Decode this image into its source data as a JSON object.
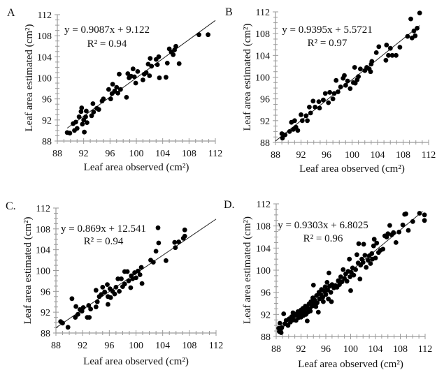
{
  "chart_data": [
    {
      "panel_label": "A",
      "type": "scatter",
      "xlabel": "Leaf area observed  (cm²)",
      "ylabel": "Leaf area estimated  (cm²)",
      "xlim": [
        88,
        112
      ],
      "ylim": [
        88,
        112
      ],
      "xticks": [
        "88",
        "92",
        "96",
        "100",
        "104",
        "108",
        "112"
      ],
      "yticks": [
        "88",
        "92",
        "96",
        "100",
        "104",
        "108",
        "112"
      ],
      "grid": false,
      "equation": "y = 0.9087x + 9.122",
      "r_squared": "R² = 0.94",
      "trendline": {
        "slope": 0.9087,
        "intercept": 9.122,
        "x_range": [
          89.5,
          112
        ]
      },
      "points": [
        [
          89.5,
          89.6
        ],
        [
          89.9,
          89.5
        ],
        [
          90.4,
          91.3
        ],
        [
          90.6,
          90.0
        ],
        [
          90.8,
          91.6
        ],
        [
          91.0,
          90.4
        ],
        [
          91.3,
          92.6
        ],
        [
          91.6,
          93.6
        ],
        [
          91.7,
          94.3
        ],
        [
          91.8,
          91.2
        ],
        [
          92.0,
          92.0
        ],
        [
          92.1,
          89.7
        ],
        [
          92.3,
          92.6
        ],
        [
          92.4,
          93.7
        ],
        [
          92.5,
          91.5
        ],
        [
          93.2,
          92.8
        ],
        [
          93.4,
          95.1
        ],
        [
          93.5,
          93.5
        ],
        [
          94.0,
          94.2
        ],
        [
          94.3,
          94.0
        ],
        [
          94.8,
          95.6
        ],
        [
          95.0,
          96.0
        ],
        [
          95.8,
          97.8
        ],
        [
          96.1,
          96.0
        ],
        [
          96.3,
          97.0
        ],
        [
          96.4,
          98.8
        ],
        [
          96.7,
          97.5
        ],
        [
          97.0,
          98.2
        ],
        [
          97.2,
          97.1
        ],
        [
          97.4,
          100.7
        ],
        [
          97.6,
          97.8
        ],
        [
          98.5,
          96.3
        ],
        [
          98.7,
          100.8
        ],
        [
          98.9,
          100.0
        ],
        [
          99.2,
          100.3
        ],
        [
          99.5,
          101.7
        ],
        [
          99.7,
          100.2
        ],
        [
          99.9,
          99.0
        ],
        [
          100.2,
          101.2
        ],
        [
          101.0,
          99.6
        ],
        [
          101.2,
          100.7
        ],
        [
          101.5,
          101.0
        ],
        [
          101.8,
          102.6
        ],
        [
          102.0,
          100.4
        ],
        [
          102.1,
          103.7
        ],
        [
          102.3,
          102.2
        ],
        [
          103.0,
          103.5
        ],
        [
          103.2,
          102.5
        ],
        [
          103.4,
          104.0
        ],
        [
          103.5,
          100.0
        ],
        [
          104.5,
          100.1
        ],
        [
          104.7,
          102.8
        ],
        [
          105.0,
          105.5
        ],
        [
          105.3,
          104.9
        ],
        [
          105.6,
          104.4
        ],
        [
          105.8,
          105.3
        ],
        [
          106.0,
          106.0
        ],
        [
          106.5,
          102.7
        ],
        [
          109.5,
          108.2
        ],
        [
          110.9,
          108.2
        ]
      ]
    },
    {
      "panel_label": "B",
      "type": "scatter",
      "xlabel": "Leaf area observed  (cm²)",
      "ylabel": "Leaf area estimated  (cm²)",
      "xlim": [
        88,
        112
      ],
      "ylim": [
        88,
        112
      ],
      "xticks": [
        "88",
        "92",
        "96",
        "100",
        "104",
        "108",
        "112"
      ],
      "yticks": [
        "88",
        "92",
        "96",
        "100",
        "104",
        "108",
        "112"
      ],
      "grid": false,
      "equation": "y = 0.9395x + 5.5721",
      "r_squared": "R² = 0.97",
      "trendline": {
        "slope": 0.9395,
        "intercept": 5.5721,
        "x_range": [
          88,
          110.6
        ]
      },
      "points": [
        [
          89.0,
          89.6
        ],
        [
          89.1,
          88.8
        ],
        [
          89.5,
          89.4
        ],
        [
          90.2,
          90.0
        ],
        [
          90.5,
          91.7
        ],
        [
          90.8,
          90.4
        ],
        [
          91.0,
          92.0
        ],
        [
          91.2,
          90.8
        ],
        [
          91.5,
          90.2
        ],
        [
          92.0,
          93.1
        ],
        [
          92.2,
          92.0
        ],
        [
          92.8,
          92.9
        ],
        [
          93.0,
          92.0
        ],
        [
          93.3,
          94.5
        ],
        [
          93.5,
          93.4
        ],
        [
          93.9,
          95.6
        ],
        [
          94.2,
          94.5
        ],
        [
          94.8,
          95.5
        ],
        [
          94.9,
          94.3
        ],
        [
          95.5,
          95.8
        ],
        [
          95.8,
          97.0
        ],
        [
          96.3,
          95.3
        ],
        [
          96.5,
          97.2
        ],
        [
          97.0,
          96.0
        ],
        [
          97.2,
          97.0
        ],
        [
          97.5,
          99.4
        ],
        [
          97.8,
          97.3
        ],
        [
          98.2,
          98.2
        ],
        [
          98.6,
          99.8
        ],
        [
          98.8,
          100.3
        ],
        [
          99.0,
          98.5
        ],
        [
          99.3,
          99.3
        ],
        [
          99.7,
          97.9
        ],
        [
          100.2,
          99.0
        ],
        [
          100.4,
          101.8
        ],
        [
          100.5,
          98.9
        ],
        [
          100.8,
          99.5
        ],
        [
          101.0,
          100.1
        ],
        [
          101.3,
          101.5
        ],
        [
          102.0,
          101.2
        ],
        [
          102.3,
          101.8
        ],
        [
          102.7,
          101.5
        ],
        [
          102.9,
          101.0
        ],
        [
          103.0,
          102.4
        ],
        [
          103.1,
          102.9
        ],
        [
          103.8,
          104.5
        ],
        [
          104.2,
          105.6
        ],
        [
          105.3,
          103.1
        ],
        [
          105.4,
          105.9
        ],
        [
          105.7,
          104.0
        ],
        [
          106.0,
          105.3
        ],
        [
          106.3,
          104.0
        ],
        [
          106.9,
          104.0
        ],
        [
          107.5,
          105.5
        ],
        [
          108.7,
          107.5
        ],
        [
          109.2,
          110.7
        ],
        [
          109.4,
          107.2
        ],
        [
          109.7,
          108.5
        ],
        [
          109.9,
          107.6
        ],
        [
          110.2,
          109.0
        ],
        [
          110.6,
          111.8
        ]
      ]
    },
    {
      "panel_label": "C.",
      "type": "scatter",
      "xlabel": "Leaf area observed  (cm²)",
      "ylabel": "Leaf area estimated (cm²)",
      "xlim": [
        88,
        112
      ],
      "ylim": [
        88,
        112
      ],
      "xticks": [
        "88",
        "92",
        "96",
        "100",
        "104",
        "108",
        "112"
      ],
      "yticks": [
        "88",
        "92",
        "96",
        "100",
        "104",
        "108",
        "112"
      ],
      "grid": false,
      "equation": "y = 0.869x + 12.541",
      "r_squared": "R² = 0.94",
      "trendline": {
        "slope": 0.869,
        "intercept": 12.541,
        "x_range": [
          88,
          112
        ]
      },
      "points": [
        [
          88.7,
          90.2
        ],
        [
          89.0,
          89.9
        ],
        [
          89.8,
          89.1
        ],
        [
          90.4,
          94.6
        ],
        [
          90.9,
          91.0
        ],
        [
          91.0,
          93.1
        ],
        [
          91.3,
          91.6
        ],
        [
          91.6,
          92.5
        ],
        [
          91.9,
          92.2
        ],
        [
          92.1,
          92.9
        ],
        [
          92.7,
          91.0
        ],
        [
          92.9,
          93.3
        ],
        [
          93.2,
          92.6
        ],
        [
          93.0,
          91.0
        ],
        [
          94.0,
          96.2
        ],
        [
          94.0,
          93.0
        ],
        [
          94.2,
          94.0
        ],
        [
          94.5,
          95.0
        ],
        [
          94.8,
          95.4
        ],
        [
          95.0,
          96.8
        ],
        [
          95.3,
          95.9
        ],
        [
          95.7,
          97.3
        ],
        [
          95.8,
          95.0
        ],
        [
          95.8,
          93.5
        ],
        [
          96.1,
          96.5
        ],
        [
          96.2,
          94.8
        ],
        [
          96.5,
          96.0
        ],
        [
          96.8,
          95.5
        ],
        [
          97.0,
          96.8
        ],
        [
          97.3,
          98.4
        ],
        [
          97.5,
          96.0
        ],
        [
          97.8,
          98.4
        ],
        [
          98.0,
          96.9
        ],
        [
          98.3,
          97.4
        ],
        [
          98.3,
          99.8
        ],
        [
          98.7,
          99.8
        ],
        [
          98.9,
          98.0
        ],
        [
          99.2,
          96.7
        ],
        [
          99.3,
          99.0
        ],
        [
          99.5,
          98.4
        ],
        [
          99.8,
          99.6
        ],
        [
          100.0,
          98.6
        ],
        [
          100.3,
          99.9
        ],
        [
          100.6,
          99.2
        ],
        [
          100.8,
          100.6
        ],
        [
          100.9,
          97.5
        ],
        [
          102.2,
          102.0
        ],
        [
          102.6,
          101.6
        ],
        [
          103.0,
          103.7
        ],
        [
          103.3,
          108.2
        ],
        [
          103.4,
          105.3
        ],
        [
          104.5,
          101.9
        ],
        [
          105.8,
          105.4
        ],
        [
          105.9,
          104.4
        ],
        [
          106.4,
          105.5
        ],
        [
          107.1,
          106.2
        ],
        [
          107.3,
          106.6
        ],
        [
          107.3,
          107.8
        ]
      ]
    },
    {
      "panel_label": "D.",
      "type": "scatter",
      "xlabel": "Leaf area observed  (cm²)",
      "ylabel": "Leaf area estimated  (cm²)",
      "xlim": [
        88,
        112
      ],
      "ylim": [
        88,
        112
      ],
      "xticks": [
        "88",
        "92",
        "96",
        "100",
        "104",
        "108",
        "112"
      ],
      "yticks": [
        "88",
        "92",
        "96",
        "100",
        "104",
        "108",
        "112"
      ],
      "grid": false,
      "equation": "y = 0.9303x + 6.8025",
      "r_squared": "R² = 0.96",
      "trendline": {
        "slope": 0.9303,
        "intercept": 6.8025,
        "x_range": [
          88.5,
          111.6
        ]
      },
      "points": [
        [
          88.4,
          89.5
        ],
        [
          88.5,
          88.9
        ],
        [
          88.6,
          90.4
        ],
        [
          88.7,
          89.2
        ],
        [
          88.8,
          88.7
        ],
        [
          88.9,
          89.6
        ],
        [
          89.2,
          92.1
        ],
        [
          89.4,
          90.3
        ],
        [
          89.6,
          90.9
        ],
        [
          89.9,
          90.0
        ],
        [
          90.1,
          91.2
        ],
        [
          90.3,
          90.6
        ],
        [
          90.5,
          91.6
        ],
        [
          90.7,
          92.3
        ],
        [
          90.8,
          91.0
        ],
        [
          91.0,
          91.8
        ],
        [
          91.2,
          90.9
        ],
        [
          91.3,
          92.1
        ],
        [
          91.5,
          92.5
        ],
        [
          91.6,
          91.4
        ],
        [
          91.8,
          92.0
        ],
        [
          92.0,
          92.8
        ],
        [
          92.0,
          91.5
        ],
        [
          92.2,
          92.2
        ],
        [
          92.3,
          93.1
        ],
        [
          92.4,
          91.8
        ],
        [
          92.6,
          92.6
        ],
        [
          92.7,
          93.5
        ],
        [
          92.8,
          92.0
        ],
        [
          93.0,
          90.8
        ],
        [
          93.0,
          93.2
        ],
        [
          93.1,
          92.4
        ],
        [
          93.3,
          93.9
        ],
        [
          93.4,
          93.0
        ],
        [
          93.5,
          92.6
        ],
        [
          93.6,
          94.3
        ],
        [
          93.8,
          93.5
        ],
        [
          93.9,
          95.0
        ],
        [
          94.0,
          97.3
        ],
        [
          94.1,
          93.9
        ],
        [
          94.2,
          94.6
        ],
        [
          94.4,
          93.4
        ],
        [
          94.5,
          95.4
        ],
        [
          94.6,
          94.1
        ],
        [
          94.8,
          92.4
        ],
        [
          94.9,
          96.0
        ],
        [
          95.0,
          94.8
        ],
        [
          95.2,
          95.6
        ],
        [
          95.3,
          96.5
        ],
        [
          95.5,
          95.1
        ],
        [
          95.6,
          94.3
        ],
        [
          95.8,
          96.2
        ],
        [
          95.9,
          97.0
        ],
        [
          96.0,
          95.6
        ],
        [
          96.2,
          97.8
        ],
        [
          96.3,
          96.4
        ],
        [
          96.4,
          94.8
        ],
        [
          96.5,
          99.5
        ],
        [
          96.6,
          97.1
        ],
        [
          96.8,
          96.0
        ],
        [
          96.9,
          94.3
        ],
        [
          97.0,
          97.4
        ],
        [
          97.3,
          96.8
        ],
        [
          97.5,
          97.2
        ],
        [
          97.8,
          96.9
        ],
        [
          98.0,
          98.1
        ],
        [
          98.2,
          97.4
        ],
        [
          98.4,
          98.8
        ],
        [
          98.6,
          97.9
        ],
        [
          98.8,
          100.1
        ],
        [
          99.0,
          98.5
        ],
        [
          99.2,
          99.3
        ],
        [
          99.4,
          98.0
        ],
        [
          99.6,
          99.8
        ],
        [
          99.8,
          102.0
        ],
        [
          99.9,
          98.8
        ],
        [
          100.0,
          96.3
        ],
        [
          100.1,
          99.6
        ],
        [
          100.3,
          100.4
        ],
        [
          100.5,
          99.1
        ],
        [
          100.8,
          100.1
        ],
        [
          101.0,
          102.8
        ],
        [
          101.2,
          101.3
        ],
        [
          101.3,
          104.8
        ],
        [
          101.5,
          98.4
        ],
        [
          101.6,
          100.9
        ],
        [
          101.8,
          102.0
        ],
        [
          102.0,
          101.4
        ],
        [
          102.1,
          104.7
        ],
        [
          102.3,
          102.7
        ],
        [
          102.5,
          100.5
        ],
        [
          102.8,
          101.8
        ],
        [
          103.0,
          102.6
        ],
        [
          103.2,
          101.2
        ],
        [
          103.4,
          103.0
        ],
        [
          103.5,
          102.0
        ],
        [
          103.7,
          104.4
        ],
        [
          103.8,
          105.6
        ],
        [
          104.0,
          102.2
        ],
        [
          104.2,
          104.9
        ],
        [
          104.5,
          103.2
        ],
        [
          104.8,
          103.6
        ],
        [
          105.2,
          103.8
        ],
        [
          105.5,
          106.2
        ],
        [
          105.8,
          106.0
        ],
        [
          106.0,
          106.6
        ],
        [
          106.3,
          108.1
        ],
        [
          106.6,
          106.4
        ],
        [
          106.9,
          106.8
        ],
        [
          107.3,
          105.0
        ],
        [
          107.8,
          106.9
        ],
        [
          108.4,
          108.2
        ],
        [
          108.7,
          110.1
        ],
        [
          108.9,
          110.2
        ],
        [
          109.3,
          107.2
        ],
        [
          110.0,
          108.8
        ],
        [
          111.1,
          110.3
        ],
        [
          111.9,
          110.0
        ],
        [
          111.9,
          109.0
        ]
      ]
    }
  ]
}
